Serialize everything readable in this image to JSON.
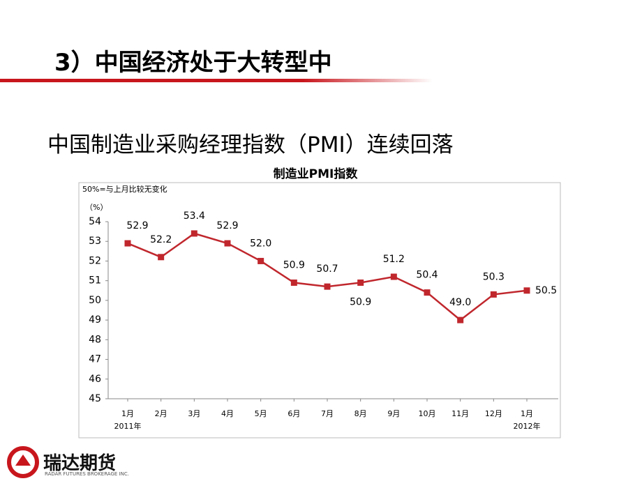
{
  "header": {
    "title": "3）中国经济处于大转型中"
  },
  "subtitle": "中国制造业采购经理指数（PMI）连续回落",
  "chart_data": {
    "type": "line",
    "title": "制造业PMI指数",
    "note": "50%=与上月比较无变化",
    "y_label": "（%）",
    "categories": [
      "1月",
      "2月",
      "3月",
      "4月",
      "5月",
      "6月",
      "7月",
      "8月",
      "9月",
      "10月",
      "11月",
      "12月",
      "1月"
    ],
    "year_labels": [
      "2011年",
      "2012年"
    ],
    "values": [
      52.9,
      52.2,
      53.4,
      52.9,
      52.0,
      50.9,
      50.7,
      50.9,
      51.2,
      50.4,
      49.0,
      50.3,
      50.5
    ],
    "value_labels": [
      "52.9",
      "52.2",
      "53.4",
      "52.9",
      "52.0",
      "50.9",
      "50.7",
      "50.9",
      "51.2",
      "50.4",
      "49.0",
      "50.3",
      "50.5"
    ],
    "color": "#c0272d",
    "ylim": [
      45,
      54
    ],
    "yticks": [
      45,
      46,
      47,
      48,
      49,
      50,
      51,
      52,
      53,
      54
    ]
  },
  "footer": {
    "brand": "瑞达期货",
    "brand_en": "RADAR FUTURES BROKERAGE INC."
  }
}
